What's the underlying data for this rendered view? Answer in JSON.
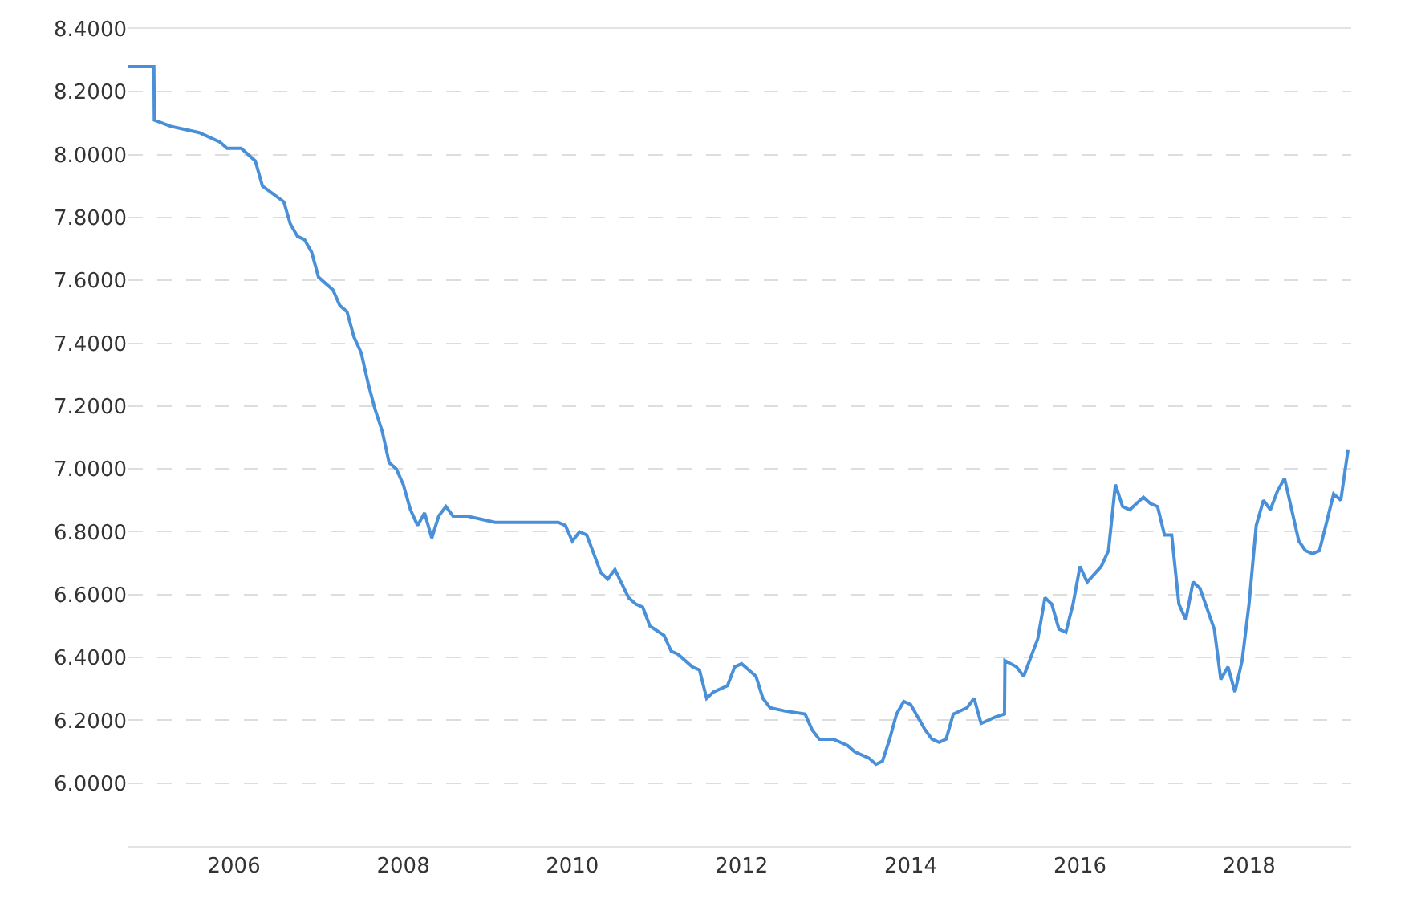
{
  "chart_data": {
    "type": "line",
    "x": [
      "2005-04",
      "2005-07-20",
      "2005-07-22",
      "2005-10",
      "2005-12",
      "2006-02",
      "2006-05",
      "2006-06",
      "2006-08",
      "2006-10",
      "2006-11",
      "2007-02",
      "2007-03",
      "2007-04",
      "2007-05",
      "2007-06",
      "2007-07",
      "2007-09",
      "2007-10",
      "2007-11",
      "2007-12",
      "2008-01",
      "2008-02",
      "2008-03",
      "2008-04",
      "2008-05",
      "2008-06",
      "2008-07",
      "2008-08",
      "2008-09",
      "2008-10",
      "2008-11",
      "2008-12",
      "2009-01",
      "2009-02",
      "2009-04",
      "2009-06",
      "2009-08",
      "2009-12",
      "2010-05",
      "2010-06",
      "2010-07",
      "2010-08",
      "2010-09",
      "2010-11",
      "2010-12",
      "2011-01",
      "2011-03",
      "2011-04",
      "2011-05",
      "2011-06",
      "2011-08",
      "2011-09",
      "2011-10",
      "2011-12",
      "2012-01",
      "2012-02",
      "2012-03",
      "2012-05",
      "2012-06",
      "2012-07",
      "2012-09",
      "2012-10",
      "2012-11",
      "2013-01",
      "2013-04",
      "2013-05",
      "2013-06",
      "2013-08",
      "2013-10",
      "2013-11",
      "2014-01",
      "2014-02",
      "2014-03",
      "2014-04",
      "2014-05",
      "2014-06",
      "2014-07",
      "2014-08",
      "2014-09",
      "2014-10",
      "2014-11",
      "2014-12",
      "2015-01",
      "2015-03",
      "2015-04",
      "2015-05",
      "2015-07",
      "2015-08-10",
      "2015-08-12",
      "2015-10",
      "2015-11",
      "2016-01",
      "2016-02",
      "2016-03",
      "2016-04",
      "2016-05",
      "2016-06",
      "2016-07",
      "2016-08",
      "2016-10",
      "2016-11",
      "2016-12",
      "2017-01",
      "2017-02",
      "2017-04",
      "2017-05",
      "2017-06",
      "2017-07",
      "2017-08",
      "2017-09",
      "2017-10",
      "2017-11",
      "2017-12",
      "2018-02",
      "2018-03",
      "2018-04",
      "2018-05",
      "2018-06",
      "2018-07",
      "2018-08",
      "2018-09",
      "2018-10",
      "2018-11",
      "2018-12",
      "2019-02",
      "2019-03",
      "2019-04",
      "2019-05",
      "2019-07",
      "2019-08",
      "2019-09"
    ],
    "series": [
      {
        "color": "#4a90d9",
        "values": [
          8.28,
          8.28,
          8.11,
          8.09,
          8.08,
          8.07,
          8.04,
          8.02,
          8.02,
          7.98,
          7.9,
          7.85,
          7.78,
          7.74,
          7.73,
          7.69,
          7.61,
          7.57,
          7.52,
          7.5,
          7.42,
          7.37,
          7.27,
          7.19,
          7.12,
          7.02,
          7.0,
          6.95,
          6.87,
          6.82,
          6.86,
          6.78,
          6.85,
          6.88,
          6.85,
          6.85,
          6.84,
          6.83,
          6.83,
          6.83,
          6.82,
          6.77,
          6.8,
          6.79,
          6.67,
          6.65,
          6.68,
          6.59,
          6.57,
          6.56,
          6.5,
          6.47,
          6.42,
          6.41,
          6.37,
          6.36,
          6.27,
          6.29,
          6.31,
          6.37,
          6.38,
          6.34,
          6.27,
          6.24,
          6.23,
          6.22,
          6.17,
          6.14,
          6.14,
          6.12,
          6.1,
          6.08,
          6.06,
          6.07,
          6.14,
          6.22,
          6.26,
          6.25,
          6.21,
          6.17,
          6.14,
          6.13,
          6.14,
          6.22,
          6.24,
          6.27,
          6.19,
          6.21,
          6.22,
          6.39,
          6.37,
          6.34,
          6.46,
          6.59,
          6.57,
          6.49,
          6.48,
          6.57,
          6.69,
          6.64,
          6.69,
          6.74,
          6.95,
          6.88,
          6.87,
          6.91,
          6.89,
          6.88,
          6.79,
          6.79,
          6.57,
          6.52,
          6.64,
          6.62,
          6.49,
          6.33,
          6.37,
          6.29,
          6.39,
          6.57,
          6.82,
          6.9,
          6.87,
          6.93,
          6.97,
          6.77,
          6.74,
          6.73,
          6.74,
          6.92,
          6.9,
          7.06
        ]
      }
    ],
    "xlim": [
      "2005-04-01",
      "2019-09-15"
    ],
    "xticks": [
      {
        "value": "2006-07-01",
        "label": "2006"
      },
      {
        "value": "2008-07-01",
        "label": "2008"
      },
      {
        "value": "2010-07-01",
        "label": "2010"
      },
      {
        "value": "2012-07-01",
        "label": "2012"
      },
      {
        "value": "2014-07-01",
        "label": "2014"
      },
      {
        "value": "2016-07-01",
        "label": "2016"
      },
      {
        "value": "2018-07-01",
        "label": "2018"
      }
    ],
    "ylim": [
      5.8,
      8.4
    ],
    "yticks": [
      {
        "value": 5.8,
        "label": null
      },
      {
        "value": 6.0,
        "label": "6.0000"
      },
      {
        "value": 6.2,
        "label": "6.2000"
      },
      {
        "value": 6.4,
        "label": "6.4000"
      },
      {
        "value": 6.6,
        "label": "6.6000"
      },
      {
        "value": 6.8,
        "label": "6.8000"
      },
      {
        "value": 7.0,
        "label": "7.0000"
      },
      {
        "value": 7.2,
        "label": "7.2000"
      },
      {
        "value": 7.4,
        "label": "7.4000"
      },
      {
        "value": 7.6,
        "label": "7.6000"
      },
      {
        "value": 7.8,
        "label": "7.8000"
      },
      {
        "value": 8.0,
        "label": "8.0000"
      },
      {
        "value": 8.2,
        "label": "8.2000"
      },
      {
        "value": 8.4,
        "label": "8.4000"
      }
    ],
    "grid": "y",
    "legend": false,
    "line_style": "solid"
  }
}
